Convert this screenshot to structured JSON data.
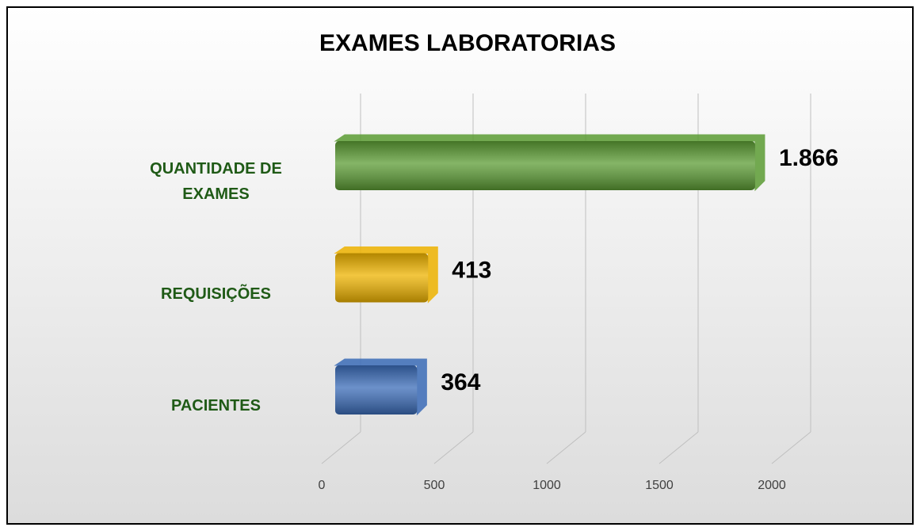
{
  "chart_data": {
    "type": "bar",
    "orientation": "horizontal",
    "title": "EXAMES LABORATORIAS",
    "categories": [
      "QUANTIDADE DE EXAMES",
      "REQUISIÇÕES",
      "PACIENTES"
    ],
    "values": [
      1866,
      413,
      364
    ],
    "value_labels": [
      "1.866",
      "413",
      "364"
    ],
    "colors": [
      "#5c9c34",
      "#eeb300",
      "#3b6cb8"
    ],
    "xlim": [
      0,
      2000
    ],
    "xticks": [
      0,
      500,
      1000,
      1500,
      2000
    ],
    "grid": true
  }
}
